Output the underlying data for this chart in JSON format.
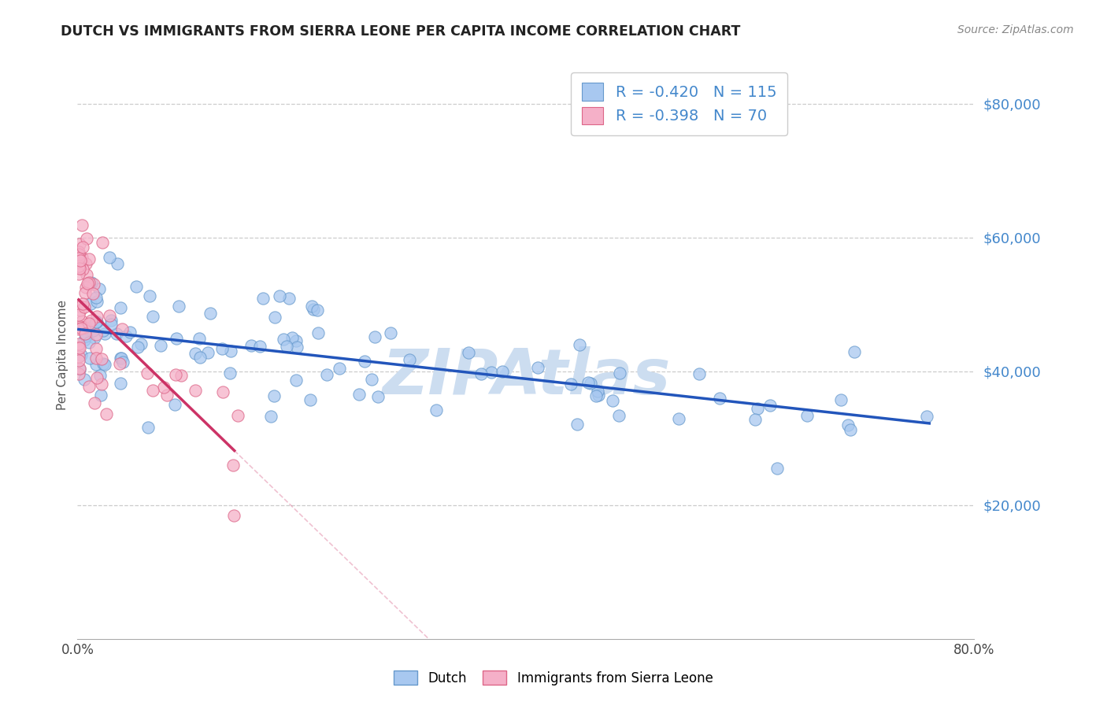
{
  "title": "DUTCH VS IMMIGRANTS FROM SIERRA LEONE PER CAPITA INCOME CORRELATION CHART",
  "source_text": "Source: ZipAtlas.com",
  "ylabel": "Per Capita Income",
  "xlim": [
    0.0,
    0.8
  ],
  "ylim": [
    0,
    85000
  ],
  "R_dutch": -0.42,
  "N_dutch": 115,
  "R_sierra": -0.398,
  "N_sierra": 70,
  "title_color": "#222222",
  "source_color": "#888888",
  "dutch_color": "#a8c8f0",
  "dutch_edge_color": "#6699cc",
  "sierra_color": "#f5b0c8",
  "sierra_edge_color": "#dd6688",
  "trend_dutch_color": "#2255bb",
  "trend_sierra_color": "#cc3366",
  "watermark_color": "#ccddf0",
  "background_color": "#ffffff",
  "grid_color": "#dddddd",
  "ytick_color": "#4488cc",
  "legend_box_dutch": "#a8c8f0",
  "legend_box_dutch_edge": "#6699cc",
  "legend_box_sierra": "#f5b0c8",
  "legend_box_sierra_edge": "#dd6688",
  "legend_text_color": "#4488cc"
}
